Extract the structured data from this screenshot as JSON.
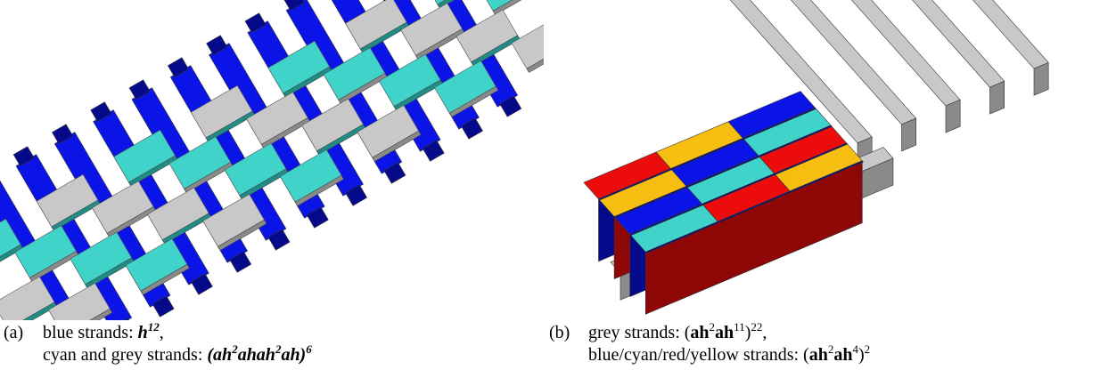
{
  "colors": {
    "blue": "#0a14e6",
    "blue_dark": "#050a8a",
    "cyan": "#3fd3c9",
    "cyan_dark": "#1f8d86",
    "grey": "#c8c8c8",
    "grey_dark": "#8a8a8a",
    "red": "#ec0c0c",
    "red_dark": "#8e0606",
    "yellow": "#f7be12",
    "yellow_dark": "#a67c05"
  },
  "figure_a": {
    "label": "(a)",
    "line1": {
      "prefix": "blue strands: ",
      "base": "h",
      "exp": "12",
      "suffix": ","
    },
    "line2": {
      "prefix": "cyan and grey strands: ",
      "p1": "(ah",
      "e1": "2",
      "p2": "ahah",
      "e2": "2",
      "p3": "ah)",
      "e3": "6"
    }
  },
  "figure_b": {
    "label": "(b)",
    "line1": {
      "prefix": "grey strands: (",
      "p1": "ah",
      "e1": "2",
      "p2": "ah",
      "e2": "11",
      "p3": ")",
      "e3": "22",
      "suffix": ","
    },
    "line2": {
      "prefix": "blue/cyan/red/yellow strands: (",
      "p1": "ah",
      "e1": "2",
      "p2": "ah",
      "e2": "4",
      "p3": ")",
      "e3": "2"
    }
  }
}
